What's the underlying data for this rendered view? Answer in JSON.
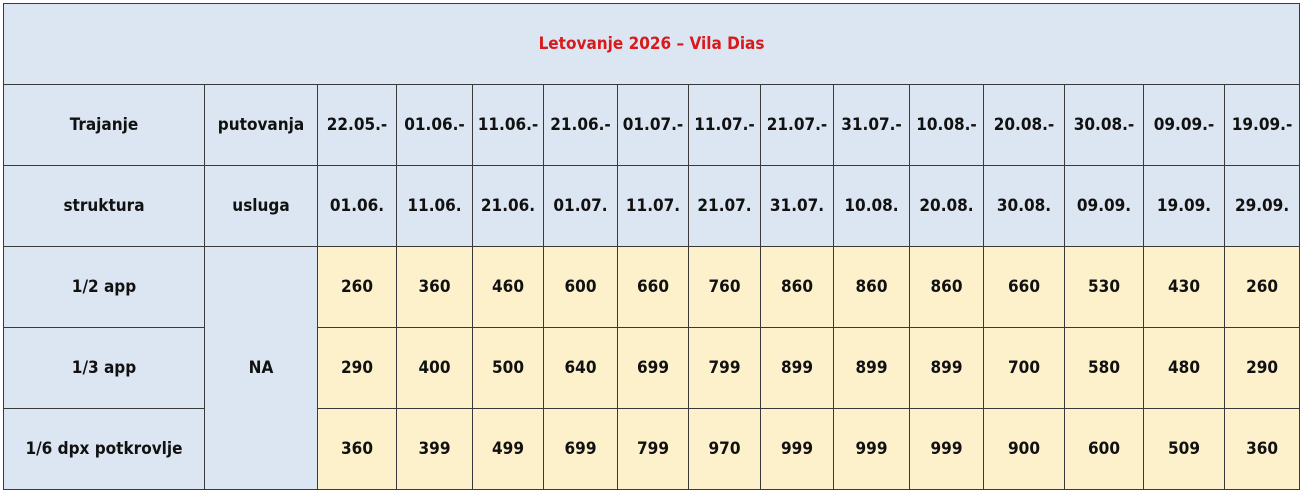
{
  "title": "Letovanje 2026 – Vila Dias",
  "header": {
    "row1": [
      "Trajanje",
      "putovanja",
      "22.05.-",
      "01.06.-",
      "11.06.-",
      "21.06.-",
      "01.07.-",
      "11.07.-",
      "21.07.-",
      "31.07.-",
      "10.08.-",
      "20.08.-",
      "30.08.-",
      "09.09.-",
      "19.09.-"
    ],
    "row2": [
      "struktura",
      "usluga",
      "01.06.",
      "11.06.",
      "21.06.",
      "01.07.",
      "11.07.",
      "21.07.",
      "31.07.",
      "10.08.",
      "20.08.",
      "30.08.",
      "09.09.",
      "19.09.",
      "29.09."
    ]
  },
  "service": "NA",
  "rows": [
    {
      "label": "1/2 app",
      "prices": [
        "260",
        "360",
        "460",
        "600",
        "660",
        "760",
        "860",
        "860",
        "860",
        "660",
        "530",
        "430",
        "260"
      ]
    },
    {
      "label": "1/3 app",
      "prices": [
        "290",
        "400",
        "500",
        "640",
        "699",
        "799",
        "899",
        "899",
        "899",
        "700",
        "580",
        "480",
        "290"
      ]
    },
    {
      "label": "1/6 dpx potkrovlje",
      "prices": [
        "360",
        "399",
        "499",
        "699",
        "799",
        "970",
        "999",
        "999",
        "999",
        "900",
        "600",
        "509",
        "360"
      ]
    }
  ],
  "colors": {
    "title": "#d91a1a",
    "header_bg": "#dce6f2",
    "price_bg": "#fdf1cc",
    "border": "#3a3a3a"
  }
}
